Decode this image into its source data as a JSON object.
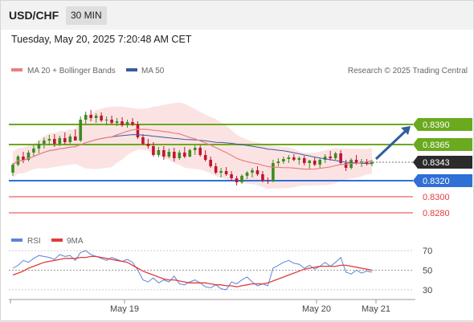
{
  "header": {
    "symbol": "USD/CHF",
    "timeframe": "30 MIN"
  },
  "datetime": "Tuesday, May 20, 2025 7:20:48 AM CET",
  "legend": {
    "ma20_bb": "MA 20 + Bollinger Bands",
    "ma50": "MA 50",
    "credit": "Research © 2025 Trading Central"
  },
  "rsi_legend": {
    "rsi": "RSI",
    "ma9": "9MA"
  },
  "colors": {
    "resistance": "#6aaa1e",
    "support": "#2f6fd6",
    "target_down": "#e23b3b",
    "candle_up": "#3c8c1e",
    "candle_down": "#c0152f",
    "ma20": "#e88080",
    "ma50": "#3a5aa0",
    "bb_fill": "#fbdada",
    "arrow": "#2e5f9e",
    "price_box": "#2b2b2b",
    "rsi": "#5b86d6",
    "rsi_ma": "#e23b3b"
  },
  "chart_data": [
    {
      "type": "candlestick",
      "title": "USD/CHF",
      "timeframe": "30 MIN",
      "ylim": [
        0.8262,
        0.8432
      ],
      "x_labels": [
        "May 19",
        "May 20",
        "May 21"
      ],
      "levels": [
        {
          "value": 0.839,
          "label": "0.8390",
          "kind": "resistance"
        },
        {
          "value": 0.8365,
          "label": "0.8365",
          "kind": "resistance"
        },
        {
          "value": 0.8343,
          "label": "0.8343",
          "kind": "last_price"
        },
        {
          "value": 0.832,
          "label": "0.8320",
          "kind": "support"
        },
        {
          "value": 0.83,
          "label": "0.8300",
          "kind": "target"
        },
        {
          "value": 0.828,
          "label": "0.8280",
          "kind": "target"
        }
      ],
      "projection": {
        "from": 0.8343,
        "to": 0.839,
        "direction": "up"
      },
      "ohlc": [
        [
          0.833,
          0.8342,
          0.8326,
          0.834
        ],
        [
          0.834,
          0.8352,
          0.8338,
          0.835
        ],
        [
          0.835,
          0.8356,
          0.8342,
          0.8346
        ],
        [
          0.8346,
          0.8358,
          0.8344,
          0.8355
        ],
        [
          0.8355,
          0.8364,
          0.835,
          0.836
        ],
        [
          0.836,
          0.837,
          0.8354,
          0.8366
        ],
        [
          0.8366,
          0.8374,
          0.836,
          0.837
        ],
        [
          0.837,
          0.8377,
          0.8364,
          0.8372
        ],
        [
          0.8372,
          0.8378,
          0.8362,
          0.8366
        ],
        [
          0.8366,
          0.8376,
          0.8363,
          0.8373
        ],
        [
          0.8373,
          0.838,
          0.8365,
          0.8368
        ],
        [
          0.8368,
          0.8378,
          0.8366,
          0.8375
        ],
        [
          0.8375,
          0.8384,
          0.837,
          0.837
        ],
        [
          0.837,
          0.84,
          0.8368,
          0.8396
        ],
        [
          0.8396,
          0.8406,
          0.839,
          0.8402
        ],
        [
          0.8402,
          0.8408,
          0.8394,
          0.8398
        ],
        [
          0.8398,
          0.8404,
          0.8392,
          0.8401
        ],
        [
          0.8401,
          0.8405,
          0.8393,
          0.8395
        ],
        [
          0.8395,
          0.84,
          0.8389,
          0.8396
        ],
        [
          0.8396,
          0.8401,
          0.839,
          0.8392
        ],
        [
          0.8392,
          0.8398,
          0.8388,
          0.8394
        ],
        [
          0.8394,
          0.8399,
          0.8387,
          0.8389
        ],
        [
          0.8389,
          0.8396,
          0.8386,
          0.8393
        ],
        [
          0.8393,
          0.8398,
          0.8388,
          0.839
        ],
        [
          0.839,
          0.8394,
          0.8372,
          0.8374
        ],
        [
          0.8374,
          0.8378,
          0.8364,
          0.8366
        ],
        [
          0.8366,
          0.8372,
          0.836,
          0.8363
        ],
        [
          0.8363,
          0.8368,
          0.835,
          0.8352
        ],
        [
          0.8352,
          0.8362,
          0.8349,
          0.8358
        ],
        [
          0.8358,
          0.8363,
          0.8346,
          0.835
        ],
        [
          0.835,
          0.836,
          0.8348,
          0.8356
        ],
        [
          0.8356,
          0.8361,
          0.8344,
          0.8348
        ],
        [
          0.8348,
          0.8358,
          0.8346,
          0.8355
        ],
        [
          0.8355,
          0.8362,
          0.8348,
          0.835
        ],
        [
          0.835,
          0.836,
          0.8349,
          0.8358
        ],
        [
          0.8358,
          0.8364,
          0.8352,
          0.8361
        ],
        [
          0.8361,
          0.8364,
          0.835,
          0.8352
        ],
        [
          0.8352,
          0.8358,
          0.8344,
          0.8346
        ],
        [
          0.8346,
          0.835,
          0.8336,
          0.8338
        ],
        [
          0.8338,
          0.8342,
          0.8328,
          0.833
        ],
        [
          0.833,
          0.8336,
          0.8324,
          0.8332
        ],
        [
          0.8332,
          0.8337,
          0.8326,
          0.8328
        ],
        [
          0.8328,
          0.8332,
          0.832,
          0.8323
        ],
        [
          0.8323,
          0.8326,
          0.8314,
          0.8318
        ],
        [
          0.8318,
          0.8328,
          0.8316,
          0.8326
        ],
        [
          0.8326,
          0.8332,
          0.8322,
          0.833
        ],
        [
          0.833,
          0.8336,
          0.8324,
          0.8333
        ],
        [
          0.8333,
          0.8338,
          0.8326,
          0.8328
        ],
        [
          0.8328,
          0.8332,
          0.8318,
          0.832
        ],
        [
          0.832,
          0.8324,
          0.8316,
          0.8319
        ],
        [
          0.8319,
          0.8346,
          0.8318,
          0.8342
        ],
        [
          0.8342,
          0.8348,
          0.8338,
          0.8344
        ],
        [
          0.8344,
          0.835,
          0.8341,
          0.8347
        ],
        [
          0.8347,
          0.8352,
          0.8342,
          0.8349
        ],
        [
          0.8349,
          0.8353,
          0.8344,
          0.8346
        ],
        [
          0.8346,
          0.835,
          0.834,
          0.8348
        ],
        [
          0.8348,
          0.8351,
          0.8339,
          0.8342
        ],
        [
          0.8342,
          0.8346,
          0.8334,
          0.8345
        ],
        [
          0.8345,
          0.8349,
          0.8338,
          0.834
        ],
        [
          0.834,
          0.8348,
          0.8336,
          0.8346
        ],
        [
          0.8346,
          0.8353,
          0.8342,
          0.835
        ],
        [
          0.835,
          0.8357,
          0.8345,
          0.8348
        ],
        [
          0.8348,
          0.8356,
          0.8346,
          0.8354
        ],
        [
          0.8354,
          0.8358,
          0.834,
          0.8342
        ],
        [
          0.8342,
          0.8346,
          0.8332,
          0.8336
        ],
        [
          0.8336,
          0.8348,
          0.8334,
          0.8346
        ],
        [
          0.8346,
          0.8352,
          0.834,
          0.8342
        ],
        [
          0.8342,
          0.8347,
          0.8337,
          0.8344
        ],
        [
          0.8344,
          0.8347,
          0.8339,
          0.8341
        ],
        [
          0.8341,
          0.8346,
          0.8338,
          0.8343
        ]
      ]
    },
    {
      "type": "line",
      "title": "RSI",
      "ylim": [
        20,
        75
      ],
      "yticks": [
        30,
        50,
        70
      ],
      "series": [
        {
          "name": "RSI",
          "values": [
            52,
            55,
            60,
            58,
            62,
            65,
            64,
            63,
            61,
            66,
            64,
            65,
            60,
            68,
            70,
            66,
            64,
            62,
            60,
            63,
            61,
            59,
            61,
            58,
            50,
            40,
            38,
            42,
            37,
            40,
            38,
            44,
            36,
            35,
            38,
            40,
            37,
            33,
            32,
            35,
            31,
            30,
            38,
            36,
            40,
            43,
            38,
            34,
            36,
            34,
            52,
            55,
            58,
            60,
            57,
            56,
            52,
            55,
            51,
            54,
            58,
            54,
            58,
            63,
            48,
            46,
            50,
            47,
            49,
            48
          ]
        },
        {
          "name": "9MA",
          "values": [
            45,
            47,
            49,
            52,
            54,
            56,
            58,
            59,
            60,
            61,
            62,
            62,
            62,
            63,
            63,
            64,
            64,
            63,
            62,
            61,
            60,
            59,
            58,
            55,
            52,
            49,
            47,
            45,
            43,
            41,
            40,
            40,
            39,
            38,
            37,
            37,
            37,
            37,
            36,
            35,
            35,
            34,
            34,
            33,
            34,
            35,
            36,
            36,
            36,
            37,
            39,
            41,
            43,
            45,
            47,
            49,
            51,
            52,
            53,
            54,
            54,
            54,
            54,
            55,
            55,
            54,
            53,
            52,
            51,
            50
          ]
        }
      ],
      "x_labels": [
        "May 19",
        "May 20",
        "May 21"
      ]
    }
  ]
}
